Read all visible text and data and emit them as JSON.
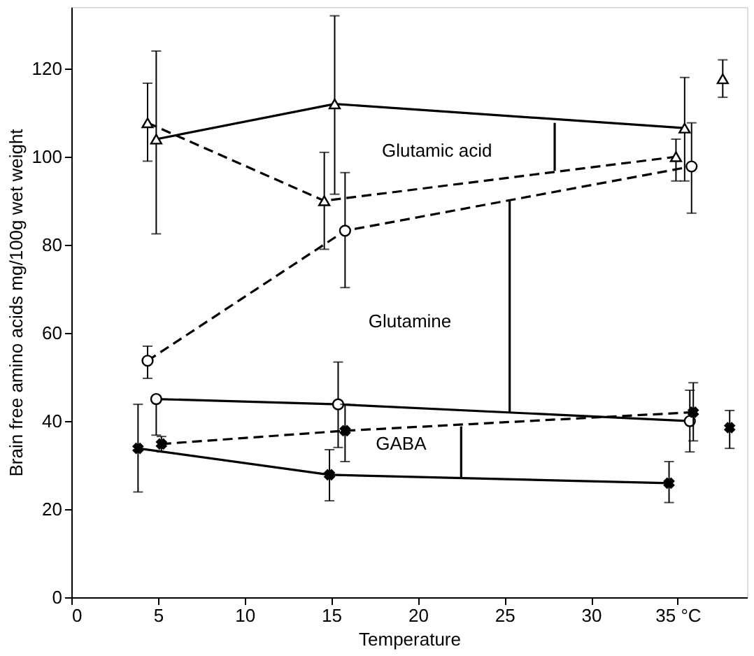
{
  "chart_data": {
    "type": "line",
    "xlabel": "Temperature",
    "ylabel": "Brain free amino acids mg/100g  wet weight",
    "xlim": [
      0,
      39
    ],
    "ylim": [
      0,
      134
    ],
    "xticks": [
      0,
      5,
      10,
      15,
      20,
      25,
      30,
      {
        "value": 35,
        "label": "35 °C"
      }
    ],
    "yticks": [
      0,
      20,
      40,
      60,
      80,
      100,
      120
    ],
    "grid": false,
    "series": [
      {
        "color": "#000000",
        "marker": "triangle",
        "line_style": "solid",
        "x": [
          4.9,
          15.2,
          35.4
        ],
        "values": [
          104,
          112,
          106.5
        ],
        "errors": [
          [
            82.5,
            124
          ],
          [
            91.5,
            132
          ],
          [
            94.5,
            118
          ]
        ]
      },
      {
        "color": "#000000",
        "marker": "triangle",
        "line_style": "dashed",
        "x": [
          4.4,
          14.6,
          34.9
        ],
        "values": [
          107.7,
          90,
          100
        ],
        "errors": [
          [
            99,
            116.7
          ],
          [
            79,
            101
          ],
          [
            94.5,
            104
          ]
        ]
      },
      {
        "color": "#000000",
        "marker": "circle",
        "line_style": "dashed",
        "x": [
          4.4,
          15.8,
          35.8
        ],
        "values": [
          53.7,
          83.2,
          97.8
        ],
        "errors": [
          [
            49.7,
            57
          ],
          [
            70.3,
            96.4
          ],
          [
            87.2,
            107.7
          ]
        ]
      },
      {
        "color": "#000000",
        "marker": "circle",
        "line_style": "solid",
        "x": [
          4.9,
          15.4,
          35.7
        ],
        "values": [
          45,
          43.8,
          40
        ],
        "errors": [
          [
            36.8,
            45
          ],
          [
            34,
            53.4
          ],
          [
            33,
            47
          ]
        ]
      },
      {
        "color": "#000000",
        "marker": "cross",
        "line_style": "dashed",
        "x": [
          5.2,
          15.8,
          35.9
        ],
        "values": [
          34.8,
          37.8,
          42
        ],
        "errors": [
          [
            33,
            36.5
          ],
          [
            30.8,
            43.8
          ],
          [
            35.5,
            48.7
          ]
        ]
      },
      {
        "color": "#000000",
        "marker": "cross",
        "line_style": "solid",
        "x": [
          3.85,
          14.9,
          34.5
        ],
        "values": [
          33.8,
          27.8,
          25.9
        ],
        "errors": [
          [
            23.9,
            43.8
          ],
          [
            21.9,
            33.5
          ],
          [
            21.5,
            30.8
          ]
        ]
      },
      {
        "type": "scatter",
        "color": "#000000",
        "marker": "triangle",
        "x": [
          37.6
        ],
        "values": [
          117.7
        ],
        "errors": [
          [
            113.5,
            122
          ]
        ]
      },
      {
        "type": "scatter",
        "color": "#000000",
        "marker": "cross",
        "x": [
          38
        ],
        "values": [
          38.5
        ],
        "errors": [
          [
            33.8,
            42.4
          ]
        ]
      },
      {
        "color": "#000000",
        "marker": "none",
        "line_style": "solid",
        "x": [
          27.9,
          27.9
        ],
        "values": [
          96.8,
          107.7
        ]
      },
      {
        "color": "#000000",
        "marker": "none",
        "line_style": "solid",
        "x": [
          25.3,
          25.3
        ],
        "values": [
          42,
          90
        ]
      },
      {
        "color": "#000000",
        "marker": "none",
        "line_style": "solid",
        "x": [
          22.5,
          22.5
        ],
        "values": [
          27.2,
          38.8
        ]
      }
    ],
    "annotations": [
      "Glutamic acid",
      "Glutamine",
      "GABA"
    ]
  }
}
